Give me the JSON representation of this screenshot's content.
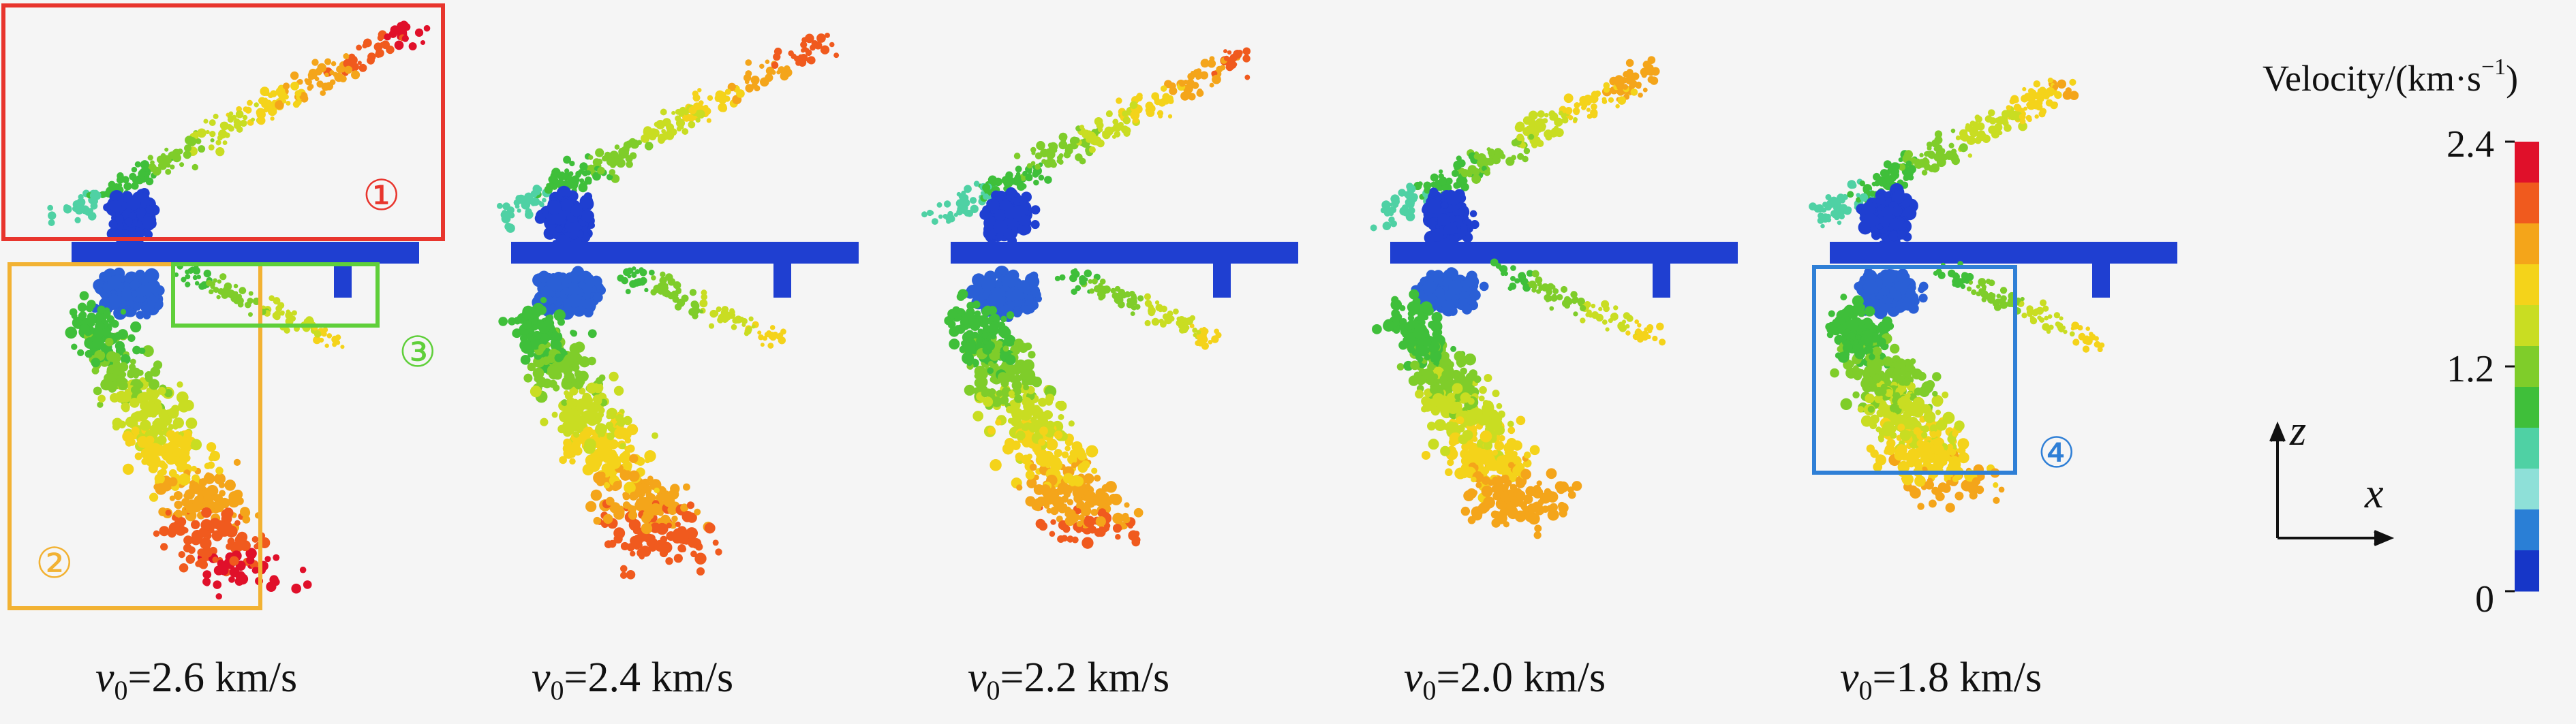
{
  "panels": [
    {
      "label_var": "v",
      "label_sub": "0",
      "label_rest": "=2.6 km/s",
      "spread": 1.0
    },
    {
      "label_var": "v",
      "label_sub": "0",
      "label_rest": "=2.4 km/s",
      "spread": 0.92
    },
    {
      "label_var": "v",
      "label_sub": "0",
      "label_rest": "=2.2 km/s",
      "spread": 0.84
    },
    {
      "label_var": "v",
      "label_sub": "0",
      "label_rest": "=2.0 km/s",
      "spread": 0.76
    },
    {
      "label_var": "v",
      "label_sub": "0",
      "label_rest": "=1.8 km/s",
      "spread": 0.68
    }
  ],
  "markers": {
    "m1": "①",
    "m2": "②",
    "m3": "③",
    "m4": "④"
  },
  "legend": {
    "title": "Velocity/(km·s",
    "title_sup": "−1",
    "title_end": ")",
    "ticks": [
      "2.4",
      "1.2",
      "0"
    ],
    "colors": [
      "#e0102a",
      "#f05a1e",
      "#f4a51a",
      "#f4d31a",
      "#c9dd22",
      "#7fcd2a",
      "#3fbf3a",
      "#4fd1a4",
      "#8ee0d8",
      "#2a7fd6",
      "#1636c8"
    ]
  },
  "axes": {
    "z": "z",
    "x": "x"
  },
  "colors": {
    "plate": "#1f3fd1",
    "box1": "#e8352d",
    "box2": "#f2b233",
    "box3": "#5fcf3a",
    "box4": "#2f7fd6",
    "background": "#f5f5f5"
  }
}
